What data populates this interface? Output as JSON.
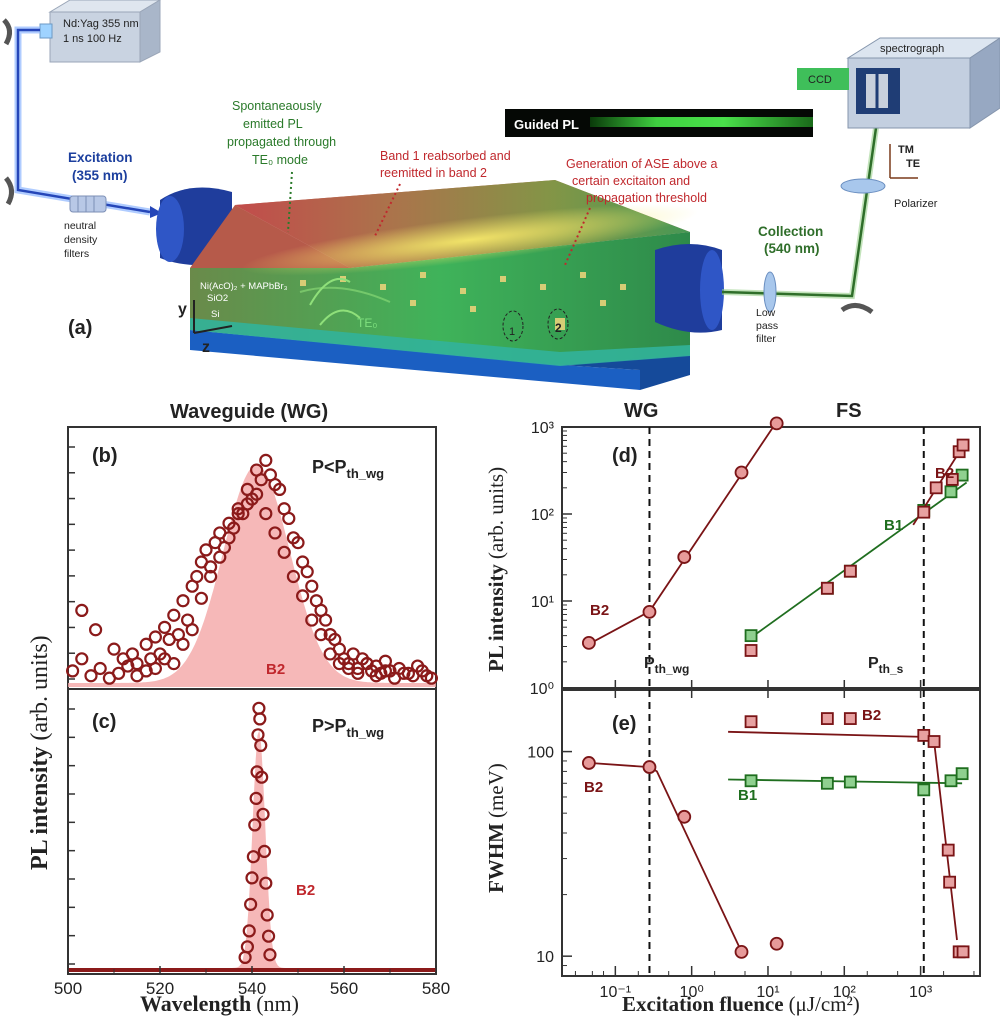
{
  "panel_a": {
    "label": "(a)",
    "laser": [
      "Nd:Yag 355 nm",
      "1 ns 100 Hz"
    ],
    "excitation": [
      "Excitation",
      "(355 nm)"
    ],
    "nd_filters": [
      "neutral",
      "density",
      "filters"
    ],
    "spont": [
      "Spontaneaously",
      "emitted PL",
      "propagated through",
      "TE₀ mode"
    ],
    "band": [
      "Band 1 reabsorbed and",
      "reemitted in band 2"
    ],
    "ase": [
      "Generation of ASE above a",
      "certain excitaiton and",
      "propagation threshold"
    ],
    "guided_pl": "Guided PL",
    "layers": [
      "Ni(AcO)₂ + MAPbBr₃",
      "SiO2",
      "Si"
    ],
    "te0": "TE₀",
    "axis_y": "y",
    "axis_z": "z",
    "marker1": "1",
    "marker2": "2",
    "collection": [
      "Collection",
      "(540 nm)"
    ],
    "lowpass": [
      "Low",
      "pass",
      "filter"
    ],
    "ccd": "CCD",
    "spectrograph": "spectrograph",
    "tm": "TM",
    "te": "TE",
    "polarizer": "Polarizer"
  },
  "colors": {
    "dark_red": "#7a1416",
    "marker_red": "#8b1a1a",
    "fill_pink": "#f4a6a6",
    "green": "#2f8a2f",
    "dark_green": "#1f6e1f",
    "blue": "#1c3f9e",
    "label_red": "#c0282d"
  },
  "chart_data": [
    {
      "id": "b",
      "type": "scatter",
      "panel_label": "(b)",
      "title": "Waveguide (WG)",
      "condition": "P<P",
      "condition_sub": "th_wg",
      "band_label": "B2",
      "xlim": [
        500,
        580
      ],
      "note": "PL spectrum below waveguide threshold: noisy broad emission around 541 nm with shaded fit",
      "fit_center": 541,
      "fit_fwhm": 17,
      "series": [
        {
          "name": "B2",
          "x": [
            503,
            506,
            510,
            512,
            514,
            515,
            517,
            518,
            519,
            520,
            521,
            522,
            523,
            524,
            525,
            526,
            527,
            528,
            529,
            530,
            531,
            532,
            533,
            534,
            535,
            536,
            537,
            538,
            539,
            540,
            541,
            542,
            543,
            544,
            545,
            546,
            547,
            548,
            549,
            550,
            551,
            552,
            553,
            554,
            555,
            556,
            557,
            558,
            559,
            560,
            561,
            562,
            563,
            564,
            565,
            566,
            567,
            568,
            569,
            570,
            572,
            574,
            576,
            578,
            501,
            503,
            505,
            507,
            509,
            511,
            513,
            515,
            517,
            519,
            521,
            523,
            525,
            527,
            529,
            531,
            533,
            535,
            537,
            539,
            541,
            543,
            545,
            547,
            549,
            551,
            553,
            555,
            557,
            559,
            561,
            563,
            565,
            567,
            569,
            571,
            573,
            575,
            577,
            579
          ],
          "y": [
            0.3,
            0.22,
            0.14,
            0.1,
            0.12,
            0.08,
            0.16,
            0.1,
            0.19,
            0.12,
            0.23,
            0.18,
            0.28,
            0.2,
            0.34,
            0.26,
            0.4,
            0.44,
            0.5,
            0.55,
            0.48,
            0.58,
            0.62,
            0.56,
            0.66,
            0.64,
            0.72,
            0.7,
            0.8,
            0.76,
            0.88,
            0.84,
            0.92,
            0.86,
            0.82,
            0.8,
            0.72,
            0.68,
            0.6,
            0.58,
            0.5,
            0.46,
            0.4,
            0.34,
            0.3,
            0.26,
            0.2,
            0.18,
            0.14,
            0.1,
            0.08,
            0.12,
            0.06,
            0.1,
            0.08,
            0.05,
            0.07,
            0.04,
            0.09,
            0.05,
            0.06,
            0.04,
            0.07,
            0.03,
            0.05,
            0.1,
            0.03,
            0.06,
            0.02,
            0.04,
            0.07,
            0.03,
            0.05,
            0.06,
            0.1,
            0.08,
            0.16,
            0.22,
            0.35,
            0.44,
            0.52,
            0.6,
            0.7,
            0.74,
            0.78,
            0.7,
            0.62,
            0.54,
            0.44,
            0.36,
            0.26,
            0.2,
            0.12,
            0.08,
            0.06,
            0.04,
            0.08,
            0.03,
            0.05,
            0.02,
            0.04,
            0.03,
            0.05,
            0.02
          ]
        }
      ]
    },
    {
      "id": "c",
      "type": "scatter",
      "panel_label": "(c)",
      "condition": "P>P",
      "condition_sub": "th_wg",
      "band_label": "B2",
      "xlabel": "Wavelength",
      "xunit": "(nm)",
      "xlim": [
        500,
        580
      ],
      "xticks": [
        500,
        520,
        540,
        560,
        580
      ],
      "shared_ylabel": "PL intensity",
      "shared_yunit": "(arb. units)",
      "note": "Above threshold: narrow ASE peak at ~541.5 nm",
      "fit_center": 541.5,
      "fit_fwhm": 3.2,
      "series": [
        {
          "name": "B2",
          "x": [
            538.5,
            539.0,
            539.4,
            539.7,
            540.0,
            540.3,
            540.6,
            540.9,
            541.1,
            541.3,
            541.5,
            541.7,
            541.9,
            542.1,
            542.4,
            542.7,
            543.0,
            543.3,
            543.6,
            543.9
          ],
          "y": [
            0.04,
            0.08,
            0.14,
            0.24,
            0.34,
            0.42,
            0.54,
            0.64,
            0.74,
            0.88,
            0.98,
            0.94,
            0.84,
            0.72,
            0.58,
            0.44,
            0.32,
            0.2,
            0.12,
            0.05
          ]
        }
      ]
    },
    {
      "id": "d",
      "type": "scatter",
      "panel_label": "(d)",
      "ylabel": "PL intensity",
      "yunit": "(arb. units)",
      "yscale": "log",
      "ylim": [
        1,
        1000
      ],
      "yticks": [
        "10⁰",
        "10¹",
        "10²",
        "10³"
      ],
      "xscale": "log",
      "xlim": [
        0.02,
        6000
      ],
      "top_labels": [
        "WG",
        "FS"
      ],
      "thresholds": [
        {
          "label": "P",
          "sub": "th_wg",
          "x": 0.28
        },
        {
          "label": "P",
          "sub": "th_s",
          "x": 1100
        }
      ],
      "series": [
        {
          "name": "B2",
          "marker": "circle",
          "color": "#8b1a1a",
          "x": [
            0.045,
            0.28,
            0.8,
            4.5,
            13
          ],
          "y": [
            3.3,
            7.5,
            32,
            300,
            1100
          ],
          "fit": [
            [
              0.045,
              3.2
            ],
            [
              0.28,
              7.6
            ],
            [
              13,
              1150
            ]
          ]
        },
        {
          "name": "B1",
          "marker": "square",
          "color": "#2f8a2f",
          "x": [
            6,
            60,
            120,
            1100,
            2500,
            3500
          ],
          "y": [
            4,
            14,
            22,
            110,
            180,
            280
          ],
          "fit": [
            [
              6,
              3.8
            ],
            [
              4000,
              230
            ]
          ]
        },
        {
          "name": "B2",
          "marker": "square",
          "color": "#8b1a1a",
          "x": [
            6,
            60,
            120,
            1100,
            1600,
            2600,
            3200,
            3600
          ],
          "y": [
            2.7,
            14,
            22,
            105,
            200,
            250,
            520,
            620
          ],
          "fit": [
            [
              800,
              75
            ],
            [
              4000,
              700
            ]
          ]
        }
      ]
    },
    {
      "id": "e",
      "type": "scatter",
      "panel_label": "(e)",
      "ylabel": "FWHM",
      "yunit": "(meV)",
      "yscale": "log",
      "ylim": [
        8,
        200
      ],
      "yticks": [
        "10",
        "100"
      ],
      "xscale": "log",
      "xlim": [
        0.02,
        6000
      ],
      "xticks": [
        "10⁻¹",
        "10⁰",
        "10¹",
        "10²",
        "10³"
      ],
      "xlabel": "Excitation fluence",
      "xunit": "(μJ/cm²)",
      "series": [
        {
          "name": "B2",
          "marker": "circle",
          "color": "#8b1a1a",
          "x": [
            0.045,
            0.28,
            0.8,
            4.5,
            13
          ],
          "y": [
            88,
            84,
            48,
            10.5,
            11.5
          ],
          "fit": [
            [
              0.045,
              88
            ],
            [
              0.28,
              84
            ],
            [
              0.35,
              80
            ],
            [
              4.5,
              10.5
            ]
          ]
        },
        {
          "name": "B1",
          "marker": "square",
          "color": "#2f8a2f",
          "x": [
            6,
            60,
            120,
            1100,
            2500,
            3500
          ],
          "y": [
            72,
            70,
            71,
            65,
            72,
            78
          ],
          "fit": [
            [
              3,
              73
            ],
            [
              3500,
              70
            ]
          ]
        },
        {
          "name": "B2",
          "marker": "square",
          "color": "#8b1a1a",
          "x": [
            6,
            60,
            120,
            1100,
            1500,
            2300,
            2400,
            3200,
            3600
          ],
          "y": [
            140,
            145,
            145,
            120,
            112,
            33,
            23,
            10.5,
            10.5
          ],
          "fit": [
            [
              3,
              125
            ],
            [
              1100,
              118
            ],
            [
              1500,
              112
            ],
            [
              3000,
              12
            ]
          ]
        }
      ]
    }
  ]
}
